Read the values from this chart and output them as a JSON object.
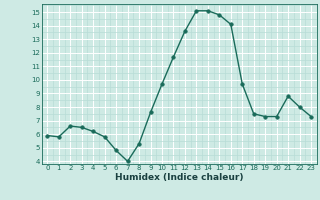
{
  "x": [
    0,
    1,
    2,
    3,
    4,
    5,
    6,
    7,
    8,
    9,
    10,
    11,
    12,
    13,
    14,
    15,
    16,
    17,
    18,
    19,
    20,
    21,
    22,
    23
  ],
  "y": [
    5.9,
    5.8,
    6.6,
    6.5,
    6.2,
    5.8,
    4.8,
    4.0,
    5.3,
    7.6,
    9.7,
    11.7,
    13.6,
    15.1,
    15.1,
    14.8,
    14.1,
    9.7,
    7.5,
    7.3,
    7.3,
    8.8,
    8.0,
    7.3
  ],
  "xlabel": "Humidex (Indice chaleur)",
  "ylim": [
    3.8,
    15.6
  ],
  "xlim": [
    -0.5,
    23.5
  ],
  "yticks": [
    4,
    5,
    6,
    7,
    8,
    9,
    10,
    11,
    12,
    13,
    14,
    15
  ],
  "xticks": [
    0,
    1,
    2,
    3,
    4,
    5,
    6,
    7,
    8,
    9,
    10,
    11,
    12,
    13,
    14,
    15,
    16,
    17,
    18,
    19,
    20,
    21,
    22,
    23
  ],
  "line_color": "#1a6b5a",
  "marker": "o",
  "marker_size": 2.5,
  "bg_color": "#ceeae4",
  "grid_major_color": "#ffffff",
  "grid_minor_color": "#b8ddd6",
  "tick_color": "#1a6b5a",
  "xlabel_color": "#1a4040",
  "xlabel_fontsize": 6.5,
  "tick_fontsize": 5.0,
  "line_width": 1.0
}
